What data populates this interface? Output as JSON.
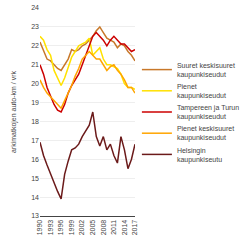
{
  "chart_data": {
    "type": "line",
    "ylabel": "arkimatkojen auto-km / vrk",
    "x": [
      1990,
      1991,
      1992,
      1993,
      1994,
      1995,
      1996,
      1997,
      1998,
      1999,
      2000,
      2001,
      2002,
      2003,
      2004,
      2005,
      2006,
      2007,
      2008,
      2009,
      2010,
      2011,
      2012,
      2013,
      2014,
      2015,
      2016,
      2017
    ],
    "series": [
      {
        "name": "Suuret keskisuuret\nkaupunkiseudut",
        "color": "#C8782A",
        "values": [
          22.2,
          21.7,
          21.3,
          21.2,
          21.0,
          20.8,
          20.7,
          21.0,
          21.3,
          21.8,
          21.7,
          21.8,
          22.0,
          22.1,
          22.3,
          22.5,
          22.8,
          23.0,
          22.7,
          22.4,
          22.3,
          22.2,
          21.9,
          22.1,
          22.0,
          21.7,
          21.5,
          21.2
        ]
      },
      {
        "name": "Pienet\nkaupunkiseudut",
        "color": "#FFE100",
        "values": [
          22.5,
          22.3,
          21.8,
          21.5,
          20.7,
          20.3,
          19.9,
          20.3,
          20.9,
          21.4,
          21.7,
          22.0,
          22.1,
          22.2,
          22.4,
          21.5,
          21.7,
          21.9,
          21.3,
          21.0,
          21.0,
          20.9,
          20.8,
          20.5,
          20.0,
          19.8,
          19.8,
          19.7
        ]
      },
      {
        "name": "Tampereen ja Turun\nkaupunkiseudut",
        "color": "#CC0000",
        "values": [
          21.0,
          20.5,
          19.8,
          19.3,
          18.9,
          18.6,
          18.5,
          18.9,
          19.5,
          19.9,
          20.2,
          20.5,
          21.0,
          21.5,
          22.0,
          22.5,
          22.7,
          22.5,
          22.3,
          22.0,
          22.3,
          22.5,
          22.3,
          22.1,
          22.1,
          21.9,
          21.7,
          21.8
        ]
      },
      {
        "name": "Pienet keskisuuret\nkaupunkiseudut",
        "color": "#FFA500",
        "values": [
          20.2,
          19.8,
          19.5,
          19.3,
          19.1,
          18.9,
          18.7,
          19.1,
          19.5,
          19.9,
          20.4,
          20.8,
          21.3,
          21.5,
          21.7,
          21.5,
          21.3,
          21.3,
          21.0,
          20.7,
          20.9,
          21.0,
          20.7,
          20.5,
          20.2,
          19.8,
          19.8,
          19.5
        ]
      },
      {
        "name": "Helsingin\nkaupunkiseutu",
        "color": "#6B1A1A",
        "values": [
          16.9,
          16.2,
          15.7,
          15.2,
          14.8,
          14.3,
          13.9,
          15.2,
          15.9,
          16.5,
          16.6,
          16.8,
          17.2,
          17.5,
          17.8,
          18.5,
          17.2,
          16.7,
          17.2,
          16.5,
          16.8,
          16.2,
          15.8,
          17.2,
          16.5,
          15.5,
          16.0,
          16.8
        ]
      }
    ],
    "xlim": [
      1990,
      2017
    ],
    "xticks": [
      1990,
      1993,
      1996,
      1999,
      2002,
      2005,
      2008,
      2011,
      2014,
      2017
    ],
    "ylim": [
      13,
      24
    ],
    "yticks": [
      13,
      14,
      15,
      16,
      17,
      18,
      19,
      20,
      21,
      22,
      23,
      24
    ],
    "grid": true,
    "legend": "right"
  }
}
